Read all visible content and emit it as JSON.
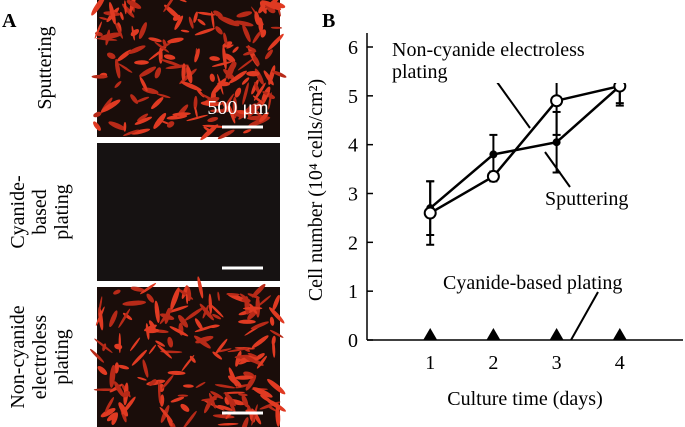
{
  "panel_a": {
    "label": "A",
    "images": [
      {
        "label": "Sputtering",
        "scale_bar": "500 μm"
      },
      {
        "label": "Cyanide-based plating"
      },
      {
        "label": "Non-cyanide electroless plating"
      }
    ]
  },
  "chart_data": {
    "type": "line",
    "panel_label": "B",
    "xlabel": "Culture time (days)",
    "ylabel": "Cell number (10⁴ cells/cm²)",
    "x": [
      1,
      2,
      3,
      4
    ],
    "xlim": [
      0,
      5
    ],
    "xticks": [
      1,
      2,
      3,
      4
    ],
    "ylim": [
      0,
      6
    ],
    "yticks": [
      0,
      1,
      2,
      3,
      4,
      5,
      6
    ],
    "series": [
      {
        "name": "Sputtering",
        "color": "#000000",
        "marker": "filled-circle",
        "line": true,
        "values": [
          2.7,
          3.8,
          4.05,
          5.2
        ],
        "errors": [
          0.55,
          0.4,
          0.62,
          0.4
        ]
      },
      {
        "name": "Non-cyanide electroless plating",
        "color": "#000000",
        "marker": "open-circle",
        "line": true,
        "values": [
          2.6,
          3.35,
          4.9,
          5.2
        ],
        "errors": [
          0.65,
          0.1,
          0.7,
          0.35
        ]
      },
      {
        "name": "Cyanide-based plating",
        "color": "#000000",
        "marker": "triangle",
        "line": false,
        "values": [
          0,
          0,
          0,
          0
        ]
      }
    ]
  }
}
